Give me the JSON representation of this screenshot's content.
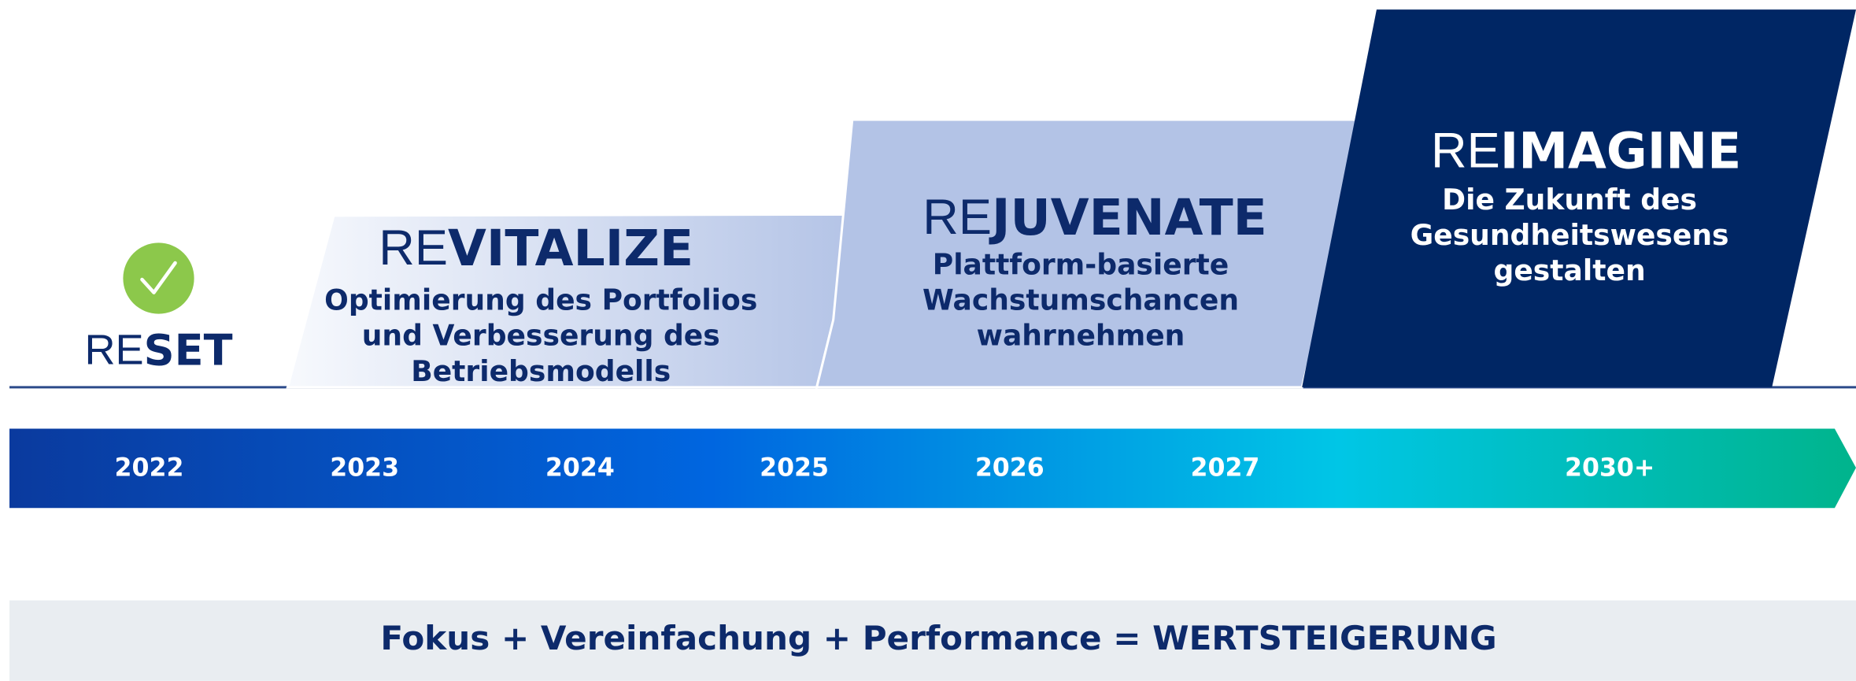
{
  "phases": [
    {
      "prefix": "RE",
      "name": "SET",
      "lines": []
    },
    {
      "prefix": "RE",
      "name": "VITALIZE",
      "lines": [
        "Optimierung des Portfolios",
        "und Verbesserung des",
        "Betriebsmodells"
      ]
    },
    {
      "prefix": "RE",
      "name": "JUVENATE",
      "lines": [
        "Plattform-basierte",
        "Wachstumschancen",
        "wahrnehmen"
      ]
    },
    {
      "prefix": "RE",
      "name": "IMAGINE",
      "lines": [
        "Die Zukunft des",
        "Gesundheitswesens",
        "gestalten"
      ]
    }
  ],
  "years": [
    "2022",
    "2023",
    "2024",
    "2025",
    "2026",
    "2027",
    "2030+"
  ],
  "tagline": "Fokus + Vereinfachung + Performance = WERTSTEIGERUNG"
}
